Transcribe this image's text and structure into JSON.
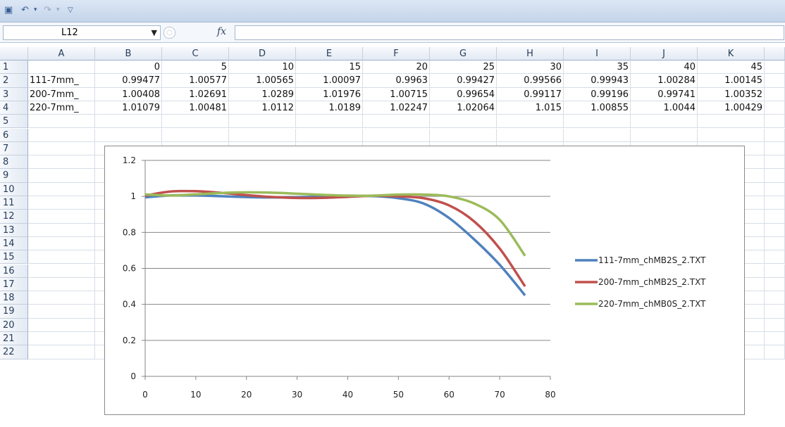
{
  "toolbar": {
    "name_box": "L12",
    "fx_label": "fx"
  },
  "columns": [
    "",
    "A",
    "B",
    "C",
    "D",
    "E",
    "F",
    "G",
    "H",
    "I",
    "J",
    "K"
  ],
  "row_numbers": [
    "1",
    "2",
    "3",
    "4",
    "5",
    "6",
    "7",
    "8",
    "9",
    "10",
    "11",
    "12",
    "13",
    "14",
    "15",
    "16",
    "17",
    "18",
    "19",
    "20",
    "21",
    "22"
  ],
  "cells": {
    "row1": [
      "",
      "0",
      "5",
      "10",
      "15",
      "20",
      "25",
      "30",
      "35",
      "40",
      "45"
    ],
    "row2": [
      "111-7mm_",
      "0.99477",
      "1.00577",
      "1.00565",
      "1.00097",
      "0.9963",
      "0.99427",
      "0.99566",
      "0.99943",
      "1.00284",
      "1.00145"
    ],
    "row3": [
      "200-7mm_",
      "1.00408",
      "1.02691",
      "1.0289",
      "1.01976",
      "1.00715",
      "0.99654",
      "0.99117",
      "0.99196",
      "0.99741",
      "1.00352"
    ],
    "row4": [
      "220-7mm_",
      "1.01079",
      "1.00481",
      "1.0112",
      "1.0189",
      "1.02247",
      "1.02064",
      "1.015",
      "1.00855",
      "1.0044",
      "1.00429"
    ]
  },
  "chart_data": {
    "type": "line",
    "x": [
      0,
      5,
      10,
      15,
      20,
      25,
      30,
      35,
      40,
      45,
      50,
      55,
      60,
      65,
      70,
      75
    ],
    "series": [
      {
        "name": "111-7mm_chMB2S_2.TXT",
        "color": "#4f81bd",
        "values": [
          0.99477,
          1.00577,
          1.00565,
          1.00097,
          0.9963,
          0.99427,
          0.99566,
          0.99943,
          1.00284,
          1.00145,
          0.99,
          0.96,
          0.88,
          0.76,
          0.62,
          0.45
        ]
      },
      {
        "name": "200-7mm_chMB2S_2.TXT",
        "color": "#c0504d",
        "values": [
          1.00408,
          1.02691,
          1.0289,
          1.01976,
          1.00715,
          0.99654,
          0.99117,
          0.99196,
          0.99741,
          1.00352,
          1.0,
          0.99,
          0.95,
          0.86,
          0.71,
          0.5
        ]
      },
      {
        "name": "220-7mm_chMB0S_2.TXT",
        "color": "#9bbb59",
        "values": [
          1.01079,
          1.00481,
          1.0112,
          1.0189,
          1.02247,
          1.02064,
          1.015,
          1.00855,
          1.0044,
          1.00429,
          1.01,
          1.01,
          1.0,
          0.96,
          0.87,
          0.67
        ]
      }
    ],
    "x_ticks": [
      "0",
      "10",
      "20",
      "30",
      "40",
      "50",
      "60",
      "70",
      "80"
    ],
    "y_ticks": [
      "0",
      "0.2",
      "0.4",
      "0.6",
      "0.8",
      "1",
      "1.2"
    ],
    "xlim": [
      0,
      80
    ],
    "ylim": [
      0,
      1.2
    ],
    "grid": "horizontal",
    "legend": "right"
  }
}
